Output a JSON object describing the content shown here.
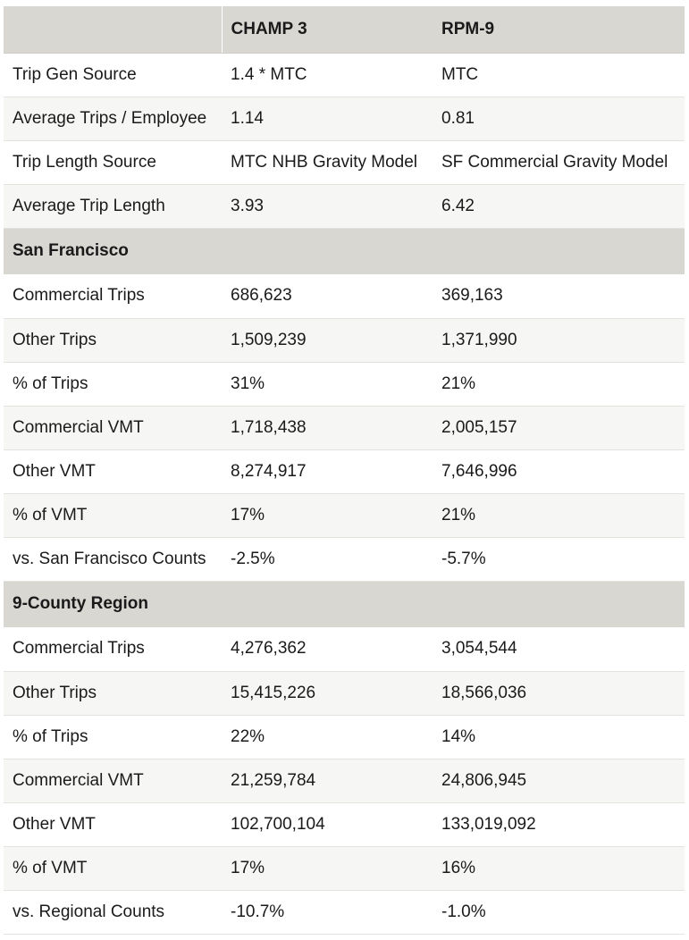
{
  "header": {
    "col1": "",
    "col2": "CHAMP 3",
    "col3": "RPM-9"
  },
  "general": [
    {
      "label": "Trip Gen Source",
      "champ": "1.4 * MTC",
      "rpm": "MTC"
    },
    {
      "label": "Average Trips / Employee",
      "champ": "1.14",
      "rpm": "0.81"
    },
    {
      "label": "Trip Length Source",
      "champ": "MTC NHB Gravity Model",
      "rpm": "SF Commercial Gravity Model"
    },
    {
      "label": "Average Trip Length",
      "champ": "3.93",
      "rpm": "6.42"
    }
  ],
  "sf": {
    "title": "San Francisco",
    "rows": [
      {
        "label": "Commercial Trips",
        "champ": "686,623",
        "rpm": "369,163"
      },
      {
        "label": "Other Trips",
        "champ": "1,509,239",
        "rpm": "1,371,990"
      },
      {
        "label": "% of Trips",
        "champ": "31%",
        "rpm": "21%"
      },
      {
        "label": "Commercial VMT",
        "champ": "1,718,438",
        "rpm": "2,005,157"
      },
      {
        "label": "Other VMT",
        "champ": "8,274,917",
        "rpm": "7,646,996"
      },
      {
        "label": "% of VMT",
        "champ": "17%",
        "rpm": "21%"
      },
      {
        "label": "vs. San Francisco Counts",
        "champ": "-2.5%",
        "rpm": "-5.7%"
      }
    ]
  },
  "region": {
    "title": "9-County Region",
    "rows": [
      {
        "label": "Commercial Trips",
        "champ": "4,276,362",
        "rpm": "3,054,544"
      },
      {
        "label": "Other Trips",
        "champ": "15,415,226",
        "rpm": "18,566,036"
      },
      {
        "label": "% of Trips",
        "champ": "22%",
        "rpm": "14%"
      },
      {
        "label": "Commercial VMT",
        "champ": "21,259,784",
        "rpm": "24,806,945"
      },
      {
        "label": "Other VMT",
        "champ": "102,700,104",
        "rpm": "133,019,092"
      },
      {
        "label": "% of VMT",
        "champ": "17%",
        "rpm": "16%"
      },
      {
        "label": "vs. Regional Counts",
        "champ": "-10.7%",
        "rpm": "-1.0%"
      }
    ]
  }
}
